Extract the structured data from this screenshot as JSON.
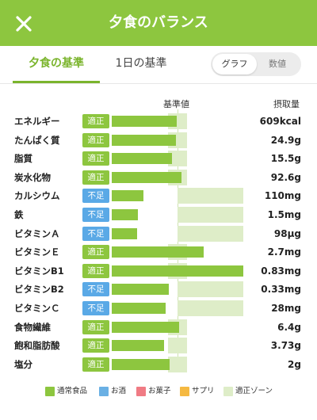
{
  "header": {
    "title": "夕食のバランス",
    "close_icon": "close-icon",
    "background": "#8dc63f"
  },
  "tabs": [
    {
      "label": "夕食の基準",
      "active": true
    },
    {
      "label": "1日の基準",
      "active": false
    }
  ],
  "view_toggle": {
    "options": [
      "グラフ",
      "数値"
    ],
    "selected": "グラフ"
  },
  "columns": {
    "standard": "基準値",
    "intake": "摂取量"
  },
  "colors": {
    "bar": "#8dc63f",
    "zone": "#deedc8",
    "ok": "#8dc63f",
    "low": "#5aa9e6"
  },
  "nutrients": [
    {
      "name": "エネルギー",
      "status": "適正",
      "status_type": "ok",
      "value": "609kcal",
      "ratio": 0.99
    },
    {
      "name": "たんぱく質",
      "status": "適正",
      "status_type": "ok",
      "value": "24.9g",
      "ratio": 0.98
    },
    {
      "name": "脂質",
      "status": "適正",
      "status_type": "ok",
      "value": "15.5g",
      "ratio": 0.91
    },
    {
      "name": "炭水化物",
      "status": "適正",
      "status_type": "ok",
      "value": "92.6g",
      "ratio": 1.06
    },
    {
      "name": "カルシウム",
      "status": "不足",
      "status_type": "low",
      "value": "110mg",
      "ratio": 0.48
    },
    {
      "name": "鉄",
      "status": "不足",
      "status_type": "low",
      "value": "1.5mg",
      "ratio": 0.4
    },
    {
      "name": "ビタミンＡ",
      "status": "不足",
      "status_type": "low",
      "value": "98μg",
      "ratio": 0.39
    },
    {
      "name": "ビタミンＥ",
      "status": "適正",
      "status_type": "ok",
      "value": "2.7mg",
      "ratio": 1.4
    },
    {
      "name": "ビタミンB1",
      "status": "適正",
      "status_type": "ok",
      "value": "0.83mg",
      "ratio": 2.0
    },
    {
      "name": "ビタミンB2",
      "status": "不足",
      "status_type": "low",
      "value": "0.33mg",
      "ratio": 0.87
    },
    {
      "name": "ビタミンＣ",
      "status": "不足",
      "status_type": "low",
      "value": "28mg",
      "ratio": 0.82
    },
    {
      "name": "食物繊維",
      "status": "適正",
      "status_type": "ok",
      "value": "6.4g",
      "ratio": 1.03
    },
    {
      "name": "飽和脂肪酸",
      "status": "適正",
      "status_type": "ok",
      "value": "3.73g",
      "ratio": 0.8
    },
    {
      "name": "塩分",
      "status": "適正",
      "status_type": "ok",
      "value": "2g",
      "ratio": 0.88
    }
  ],
  "legend": [
    {
      "label": "通常食品",
      "color": "#8dc63f"
    },
    {
      "label": "お酒",
      "color": "#6ab0e4"
    },
    {
      "label": "お菓子",
      "color": "#f07b84"
    },
    {
      "label": "サプリ",
      "color": "#f5b942"
    },
    {
      "label": "適正ゾーン",
      "color": "#deedc8"
    }
  ]
}
